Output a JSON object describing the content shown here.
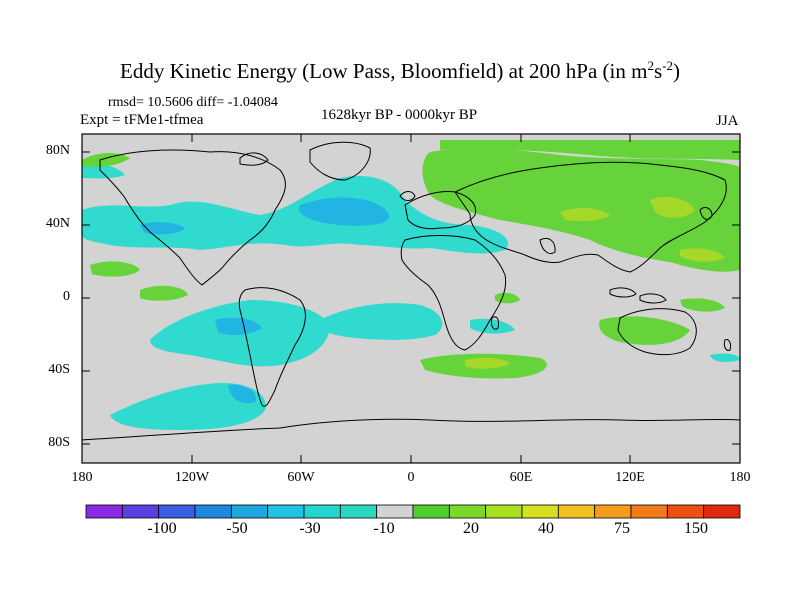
{
  "title": {
    "main": "Eddy Kinetic Energy (Low Pass, Bloomfield) at 200 hPa (in m",
    "sup1": "2",
    "mid": "s",
    "sup2": "-2",
    "end": ")"
  },
  "stats": "rmsd= 10.5606 diff= -1.04084",
  "expt": "Expt = tFMe1-tfmea",
  "period": "1628kyr BP - 0000kyr BP",
  "season": "JJA",
  "lat_labels": [
    "80N",
    "40N",
    "0",
    "40S",
    "80S"
  ],
  "lon_labels": [
    "180",
    "120W",
    "60W",
    "0",
    "60E",
    "120E",
    "180"
  ],
  "colorbar": {
    "labels": [
      "-100",
      "-50",
      "-30",
      "-10",
      "20",
      "40",
      "75",
      "150"
    ],
    "colors": [
      "#8a2be2",
      "#5b3fe0",
      "#3a5fe0",
      "#1e88e0",
      "#1ea8e0",
      "#20c4e0",
      "#25d5d0",
      "#2ad8c0",
      "#d3d3d3",
      "#4fd030",
      "#7bd828",
      "#a8e020",
      "#d4e020",
      "#f0c020",
      "#f59c1c",
      "#f27a18",
      "#ee5014",
      "#e02a10"
    ]
  },
  "colors": {
    "background": "#d3d3d3",
    "positive_low": "#66d33a",
    "positive_mid": "#a6d82a",
    "negative_low": "#30dacf",
    "negative_mid": "#22b4e3"
  }
}
